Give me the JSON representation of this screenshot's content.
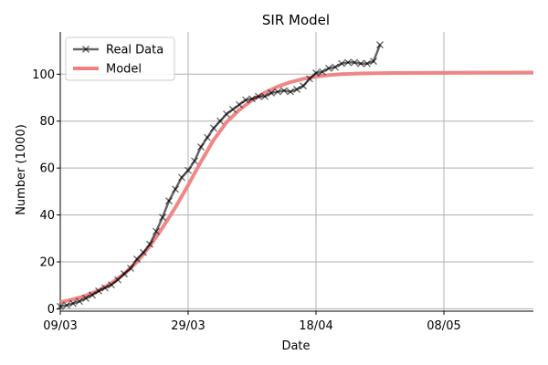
{
  "chart_data": {
    "type": "line",
    "title": "SIR Model",
    "xlabel": "Date",
    "ylabel": "Number (1000)",
    "x_axis": "date",
    "xlim": [
      "2020-03-09",
      "2020-05-22"
    ],
    "ylim": [
      -1,
      118
    ],
    "x_ticks": [
      {
        "date": "2020-03-09",
        "label": "09/03"
      },
      {
        "date": "2020-03-29",
        "label": "29/03"
      },
      {
        "date": "2020-04-18",
        "label": "18/04"
      },
      {
        "date": "2020-05-08",
        "label": "08/05"
      }
    ],
    "y_ticks": [
      0,
      20,
      40,
      60,
      80,
      100
    ],
    "grid": true,
    "legend_position": "top-left",
    "series": [
      {
        "name": "Real Data",
        "color": "#555555",
        "marker": "x",
        "points": [
          [
            "2020-03-09",
            1.0
          ],
          [
            "2020-03-10",
            1.5
          ],
          [
            "2020-03-11",
            2.3
          ],
          [
            "2020-03-12",
            3.2
          ],
          [
            "2020-03-13",
            4.5
          ],
          [
            "2020-03-14",
            5.9
          ],
          [
            "2020-03-15",
            7.6
          ],
          [
            "2020-03-16",
            8.9
          ],
          [
            "2020-03-17",
            10.2
          ],
          [
            "2020-03-18",
            12.4
          ],
          [
            "2020-03-19",
            14.9
          ],
          [
            "2020-03-20",
            17.3
          ],
          [
            "2020-03-21",
            21.2
          ],
          [
            "2020-03-22",
            24.0
          ],
          [
            "2020-03-23",
            27.5
          ],
          [
            "2020-03-24",
            33.0
          ],
          [
            "2020-03-25",
            39.0
          ],
          [
            "2020-03-26",
            46.0
          ],
          [
            "2020-03-27",
            51.0
          ],
          [
            "2020-03-28",
            56.0
          ],
          [
            "2020-03-29",
            59.0
          ],
          [
            "2020-03-30",
            63.0
          ],
          [
            "2020-03-31",
            69.0
          ],
          [
            "2020-04-01",
            73.0
          ],
          [
            "2020-04-02",
            77.0
          ],
          [
            "2020-04-03",
            80.0
          ],
          [
            "2020-04-04",
            83.0
          ],
          [
            "2020-04-05",
            85.0
          ],
          [
            "2020-04-06",
            87.0
          ],
          [
            "2020-04-07",
            89.0
          ],
          [
            "2020-04-08",
            89.5
          ],
          [
            "2020-04-09",
            90.5
          ],
          [
            "2020-04-10",
            90.5
          ],
          [
            "2020-04-11",
            92.0
          ],
          [
            "2020-04-12",
            92.5
          ],
          [
            "2020-04-13",
            93.0
          ],
          [
            "2020-04-14",
            92.5
          ],
          [
            "2020-04-15",
            93.5
          ],
          [
            "2020-04-16",
            95.0
          ],
          [
            "2020-04-17",
            98.0
          ],
          [
            "2020-04-18",
            100.5
          ],
          [
            "2020-04-19",
            101.0
          ],
          [
            "2020-04-20",
            102.5
          ],
          [
            "2020-04-21",
            103.0
          ],
          [
            "2020-04-22",
            104.5
          ],
          [
            "2020-04-23",
            105.0
          ],
          [
            "2020-04-24",
            105.0
          ],
          [
            "2020-04-25",
            104.5
          ],
          [
            "2020-04-26",
            104.5
          ],
          [
            "2020-04-27",
            105.5
          ],
          [
            "2020-04-28",
            112.5
          ]
        ]
      },
      {
        "name": "Model",
        "color": "#f08080",
        "marker": "none",
        "points": [
          [
            "2020-03-09",
            2.8
          ],
          [
            "2020-03-11",
            4.0
          ],
          [
            "2020-03-13",
            5.6
          ],
          [
            "2020-03-15",
            7.8
          ],
          [
            "2020-03-17",
            10.9
          ],
          [
            "2020-03-19",
            14.9
          ],
          [
            "2020-03-21",
            20.0
          ],
          [
            "2020-03-23",
            26.7
          ],
          [
            "2020-03-25",
            34.6
          ],
          [
            "2020-03-27",
            43.2
          ],
          [
            "2020-03-29",
            52.7
          ],
          [
            "2020-03-31",
            62.7
          ],
          [
            "2020-04-02",
            72.0
          ],
          [
            "2020-04-04",
            79.5
          ],
          [
            "2020-04-06",
            84.8
          ],
          [
            "2020-04-08",
            88.9
          ],
          [
            "2020-04-10",
            92.1
          ],
          [
            "2020-04-12",
            94.7
          ],
          [
            "2020-04-14",
            96.6
          ],
          [
            "2020-04-16",
            98.0
          ],
          [
            "2020-04-18",
            99.0
          ],
          [
            "2020-04-20",
            99.6
          ],
          [
            "2020-04-22",
            100.0
          ],
          [
            "2020-04-25",
            100.3
          ],
          [
            "2020-04-30",
            100.5
          ],
          [
            "2020-05-08",
            100.6
          ],
          [
            "2020-05-22",
            100.7
          ]
        ]
      }
    ]
  }
}
